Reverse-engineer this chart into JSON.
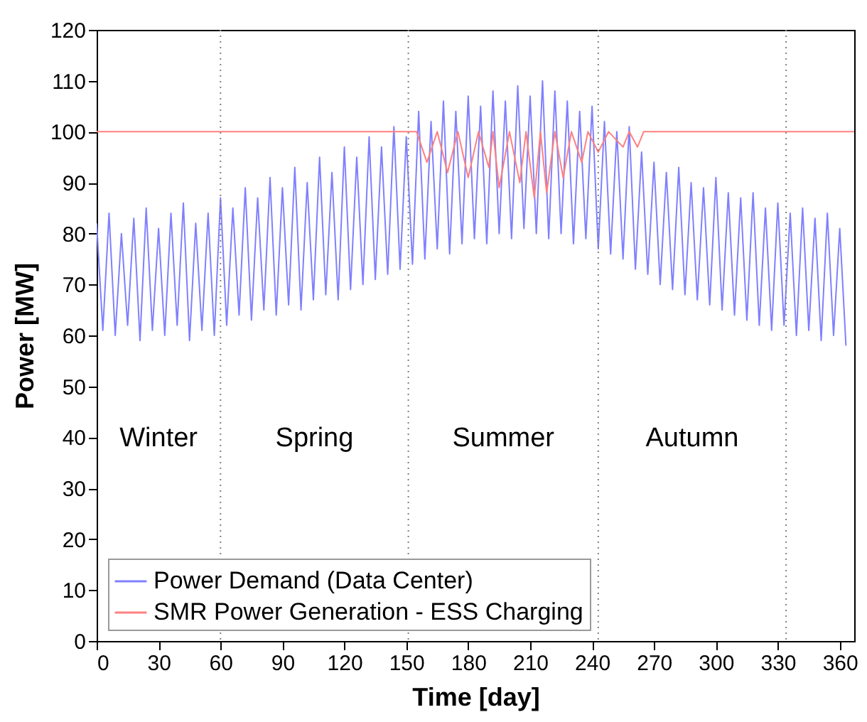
{
  "chart_data": {
    "type": "line",
    "xlabel": "Time [day]",
    "ylabel": "Power [MW]",
    "xlim": [
      0,
      367
    ],
    "ylim": [
      0,
      120
    ],
    "xticks": [
      0,
      30,
      60,
      90,
      120,
      150,
      180,
      210,
      240,
      270,
      300,
      330,
      360
    ],
    "yticks": [
      0,
      10,
      20,
      30,
      40,
      50,
      60,
      70,
      80,
      90,
      100,
      110,
      120
    ],
    "grid": false,
    "legend": "bottom left",
    "marker": "none",
    "line_style": "solid",
    "series": [
      {
        "name": "Power Demand (Data Center)",
        "color": "#8080ff",
        "x": [
          0,
          3,
          6,
          9,
          12,
          15,
          18,
          21,
          24,
          27,
          30,
          33,
          36,
          39,
          42,
          45,
          48,
          51,
          54,
          57,
          60,
          63,
          66,
          69,
          72,
          75,
          78,
          81,
          84,
          87,
          90,
          93,
          96,
          99,
          102,
          105,
          108,
          111,
          114,
          117,
          120,
          123,
          126,
          129,
          132,
          135,
          138,
          141,
          144,
          147,
          150,
          153,
          156,
          159,
          162,
          165,
          168,
          171,
          174,
          177,
          180,
          183,
          186,
          189,
          192,
          195,
          198,
          201,
          204,
          207,
          210,
          213,
          216,
          219,
          222,
          225,
          228,
          231,
          234,
          237,
          240,
          243,
          246,
          249,
          252,
          255,
          258,
          261,
          264,
          267,
          270,
          273,
          276,
          279,
          282,
          285,
          288,
          291,
          294,
          297,
          300,
          303,
          306,
          309,
          312,
          315,
          318,
          321,
          324,
          327,
          330,
          333,
          336,
          339,
          342,
          345,
          348,
          351,
          354,
          357,
          360,
          363
        ],
        "values": [
          82,
          61,
          84,
          60,
          80,
          62,
          83,
          59,
          85,
          61,
          81,
          60,
          84,
          62,
          86,
          59,
          82,
          61,
          84,
          60,
          87,
          62,
          85,
          64,
          89,
          63,
          87,
          65,
          91,
          64,
          89,
          66,
          93,
          65,
          90,
          67,
          95,
          68,
          92,
          67,
          97,
          69,
          95,
          70,
          99,
          71,
          97,
          72,
          101,
          73,
          99,
          74,
          104,
          75,
          102,
          77,
          106,
          76,
          104,
          78,
          107,
          79,
          105,
          78,
          108,
          80,
          106,
          79,
          109,
          81,
          107,
          80,
          110,
          79,
          108,
          80,
          106,
          78,
          104,
          79,
          105,
          77,
          102,
          76,
          100,
          75,
          101,
          73,
          96,
          72,
          94,
          70,
          92,
          69,
          93,
          68,
          90,
          67,
          89,
          66,
          91,
          65,
          88,
          64,
          87,
          63,
          88,
          62,
          85,
          61,
          86,
          62,
          84,
          60,
          85,
          61,
          83,
          59,
          84,
          60,
          81,
          58
        ]
      },
      {
        "name": "SMR Power Generation - ESS Charging",
        "color": "#ff8080",
        "x": [
          0,
          155,
          160,
          165,
          170,
          175,
          180,
          185,
          190,
          192,
          195,
          200,
          205,
          208,
          212,
          215,
          218,
          222,
          226,
          230,
          235,
          238,
          243,
          248,
          255,
          258,
          262,
          265,
          367
        ],
        "values": [
          100,
          100,
          94,
          100,
          92,
          100,
          91,
          100,
          93,
          100,
          89,
          100,
          90,
          100,
          87,
          100,
          88,
          100,
          91,
          100,
          94,
          100,
          96,
          100,
          97,
          100,
          97,
          100,
          100
        ]
      }
    ],
    "ref_lines": [
      {
        "axis": "x",
        "value": 60,
        "color": "#808080",
        "line_style": "dotted"
      },
      {
        "axis": "x",
        "value": 151,
        "color": "#808080",
        "line_style": "dotted"
      },
      {
        "axis": "x",
        "value": 243,
        "color": "#808080",
        "line_style": "dotted"
      },
      {
        "axis": "x",
        "value": 334,
        "color": "#808080",
        "line_style": "dotted"
      }
    ],
    "annotations": [
      "Winter",
      "Spring",
      "Summer",
      "Autumn"
    ]
  }
}
